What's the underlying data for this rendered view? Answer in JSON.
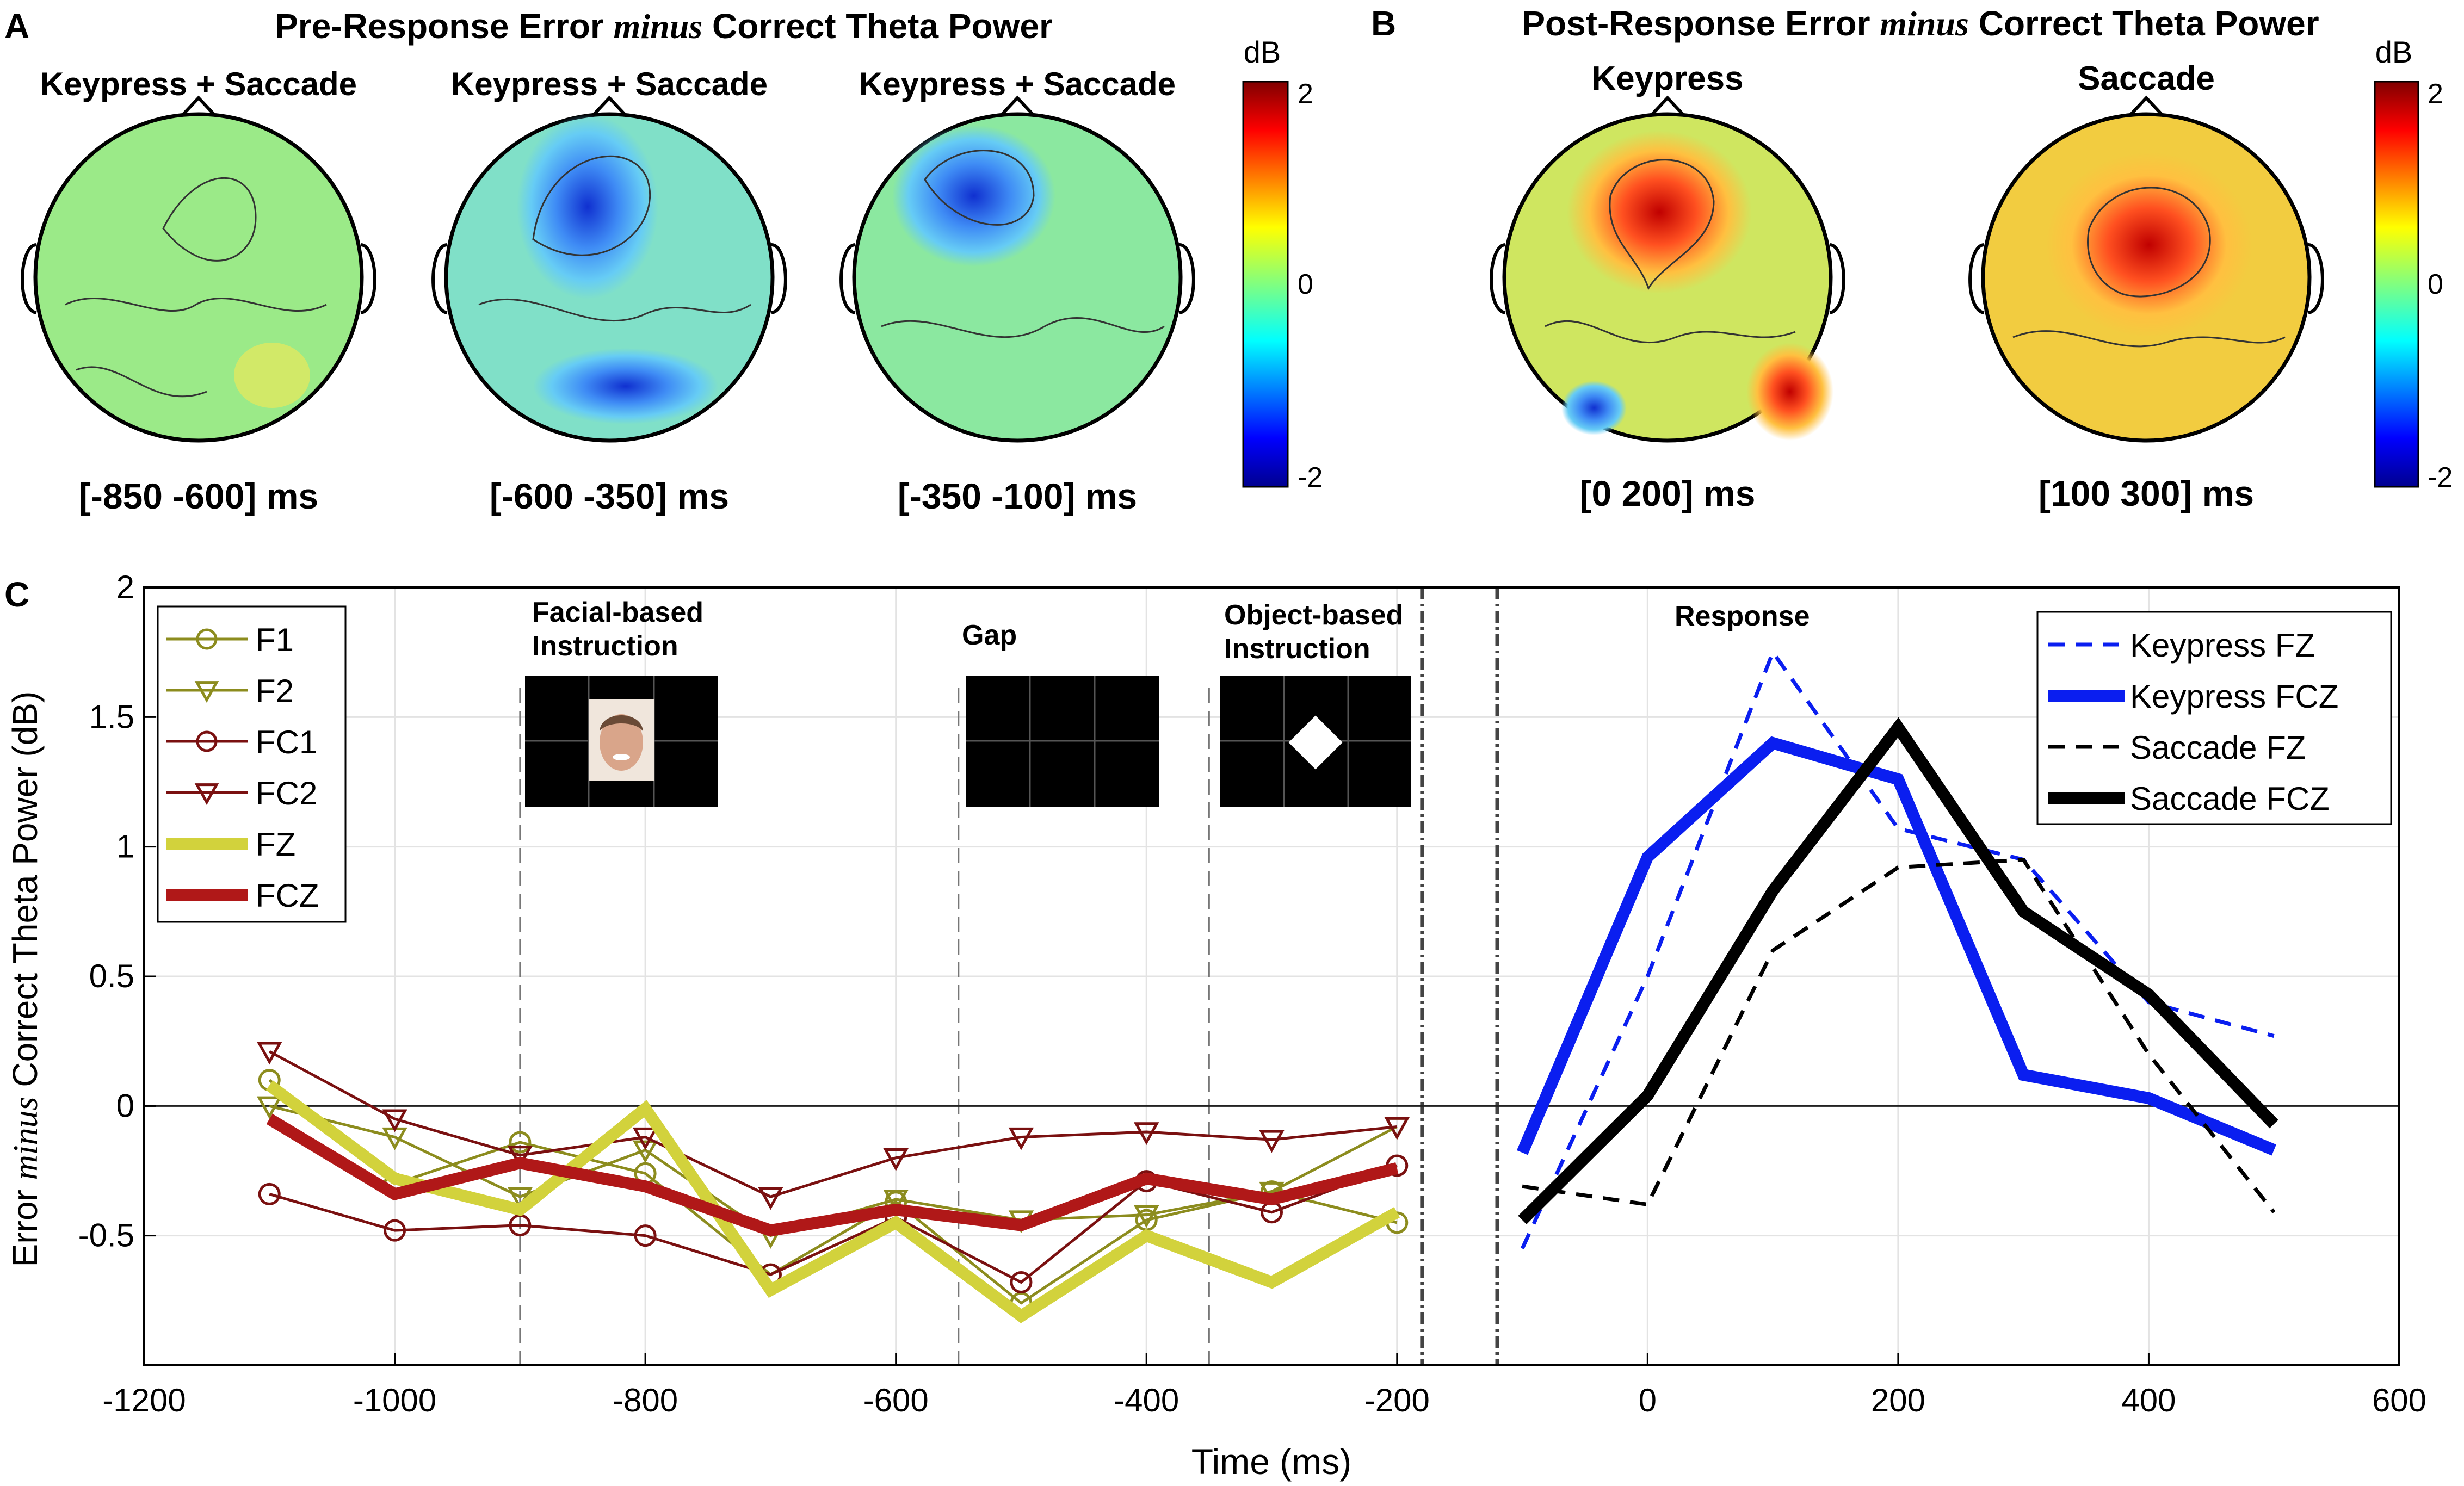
{
  "colors": {
    "olive": "#8c8c1e",
    "darkred": "#7a1010",
    "fz_yellow": "#d2d23c",
    "fcz_red": "#b01818",
    "blue": "#0a1ef0",
    "black": "#000000",
    "grid": "#e3e3e3"
  },
  "panel_a": {
    "letter": "A",
    "title_pre": "Pre-Response Error ",
    "title_minus": "minus",
    "title_post": " Correct Theta Power",
    "maps": [
      {
        "label": "Keypress + Saccade",
        "window": "[-850 -600] ms"
      },
      {
        "label": "Keypress + Saccade",
        "window": "[-600 -350] ms"
      },
      {
        "label": "Keypress + Saccade",
        "window": "[-350 -100] ms"
      }
    ],
    "colorbar": {
      "unit": "dB",
      "ticks": [
        "2",
        "0",
        "-2"
      ]
    }
  },
  "panel_b": {
    "letter": "B",
    "title_pre": "Post-Response Error ",
    "title_minus": "minus",
    "title_post": " Correct Theta Power",
    "maps": [
      {
        "label": "Keypress",
        "window": "[0 200] ms"
      },
      {
        "label": "Saccade",
        "window": "[100 300] ms"
      }
    ],
    "colorbar": {
      "unit": "dB",
      "ticks": [
        "2",
        "0",
        "-2"
      ]
    }
  },
  "panel_c": {
    "letter": "C",
    "stimuli": {
      "facial_line1": "Facial-based",
      "facial_line2": "Instruction",
      "gap": "Gap",
      "object_line1": "Object-based",
      "object_line2": "Instruction",
      "response": "Response"
    }
  },
  "chart_data": {
    "type": "line",
    "xlabel": "Time (ms)",
    "ylabel_pre": "Error ",
    "ylabel_minus": "minus",
    "ylabel_post": " Correct Theta Power (dB)",
    "xlim": [
      -1200,
      600
    ],
    "ylim": [
      -1,
      2
    ],
    "x_ticks": [
      -1200,
      -1000,
      -800,
      -600,
      -400,
      -200,
      0,
      200,
      400,
      600
    ],
    "x_tick_labels": [
      "-1200",
      "-1000",
      "-800",
      "-600",
      "-400",
      "-200",
      "0",
      "200",
      "400",
      "600"
    ],
    "y_ticks": [
      -0.5,
      0,
      0.5,
      1,
      1.5,
      2
    ],
    "y_tick_labels": [
      "-0.5",
      "0",
      "0.5",
      "1",
      "1.5",
      "2"
    ],
    "event_lines_ms": [
      -900,
      -550,
      -350
    ],
    "break_lines_ms": [
      -180,
      -120
    ],
    "pre_response_series": [
      {
        "name": "F1",
        "marker": "circle",
        "color": "#8c8c1e",
        "x": [
          -1100,
          -1000,
          -900,
          -800,
          -700,
          -600,
          -500,
          -400,
          -300,
          -200
        ],
        "y": [
          0.1,
          -0.3,
          -0.14,
          -0.26,
          -0.65,
          -0.37,
          -0.76,
          -0.44,
          -0.33,
          -0.45
        ]
      },
      {
        "name": "F2",
        "marker": "triangle-down",
        "color": "#8c8c1e",
        "x": [
          -1100,
          -1000,
          -900,
          -800,
          -700,
          -600,
          -500,
          -400,
          -300,
          -200
        ],
        "y": [
          0,
          -0.12,
          -0.35,
          -0.17,
          -0.5,
          -0.36,
          -0.44,
          -0.42,
          -0.33,
          -0.08
        ]
      },
      {
        "name": "FC1",
        "marker": "circle",
        "color": "#7a1010",
        "x": [
          -1100,
          -1000,
          -900,
          -800,
          -700,
          -600,
          -500,
          -400,
          -300,
          -200
        ],
        "y": [
          -0.34,
          -0.48,
          -0.46,
          -0.5,
          -0.65,
          -0.43,
          -0.68,
          -0.29,
          -0.41,
          -0.23
        ]
      },
      {
        "name": "FC2",
        "marker": "triangle-down",
        "color": "#7a1010",
        "x": [
          -1100,
          -1000,
          -900,
          -800,
          -700,
          -600,
          -500,
          -400,
          -300,
          -200
        ],
        "y": [
          0.21,
          -0.05,
          -0.19,
          -0.12,
          -0.35,
          -0.2,
          -0.12,
          -0.1,
          -0.13,
          -0.08
        ]
      },
      {
        "name": "FZ",
        "marker": "none",
        "color": "#d2d23c",
        "width": "thick",
        "x": [
          -1100,
          -1000,
          -900,
          -800,
          -700,
          -600,
          -500,
          -400,
          -300,
          -200
        ],
        "y": [
          0.08,
          -0.28,
          -0.4,
          -0.01,
          -0.71,
          -0.45,
          -0.81,
          -0.5,
          -0.68,
          -0.41
        ]
      },
      {
        "name": "FCZ",
        "marker": "none",
        "color": "#b01818",
        "width": "thick",
        "x": [
          -1100,
          -1000,
          -900,
          -800,
          -700,
          -600,
          -500,
          -400,
          -300,
          -200
        ],
        "y": [
          -0.05,
          -0.34,
          -0.22,
          -0.31,
          -0.48,
          -0.4,
          -0.46,
          -0.28,
          -0.36,
          -0.24
        ]
      }
    ],
    "post_response_series": [
      {
        "name": "Keypress FZ",
        "style": "dashed-thin",
        "color": "#0a1ef0",
        "x": [
          -100,
          0,
          100,
          200,
          300,
          400,
          500
        ],
        "y": [
          -0.55,
          0.5,
          1.75,
          1.07,
          0.95,
          0.4,
          0.27
        ]
      },
      {
        "name": "Keypress FCZ",
        "style": "solid-thick",
        "color": "#0a1ef0",
        "x": [
          -100,
          0,
          100,
          200,
          300,
          400,
          500
        ],
        "y": [
          -0.18,
          0.96,
          1.4,
          1.26,
          0.12,
          0.03,
          -0.17
        ]
      },
      {
        "name": "Saccade FZ",
        "style": "dashed-thin",
        "color": "#000000",
        "x": [
          -100,
          0,
          100,
          200,
          300,
          400,
          500
        ],
        "y": [
          -0.31,
          -0.38,
          0.6,
          0.92,
          0.95,
          0.2,
          -0.41
        ]
      },
      {
        "name": "Saccade FCZ",
        "style": "solid-thick",
        "color": "#000000",
        "x": [
          -100,
          0,
          100,
          200,
          300,
          400,
          500
        ],
        "y": [
          -0.44,
          0.04,
          0.83,
          1.46,
          0.75,
          0.43,
          -0.07
        ]
      }
    ],
    "legend_left": [
      "F1",
      "F2",
      "FC1",
      "FC2",
      "FZ",
      "FCZ"
    ],
    "legend_right": [
      "Keypress FZ",
      "Keypress FCZ",
      "Saccade FZ",
      "Saccade FCZ"
    ]
  }
}
